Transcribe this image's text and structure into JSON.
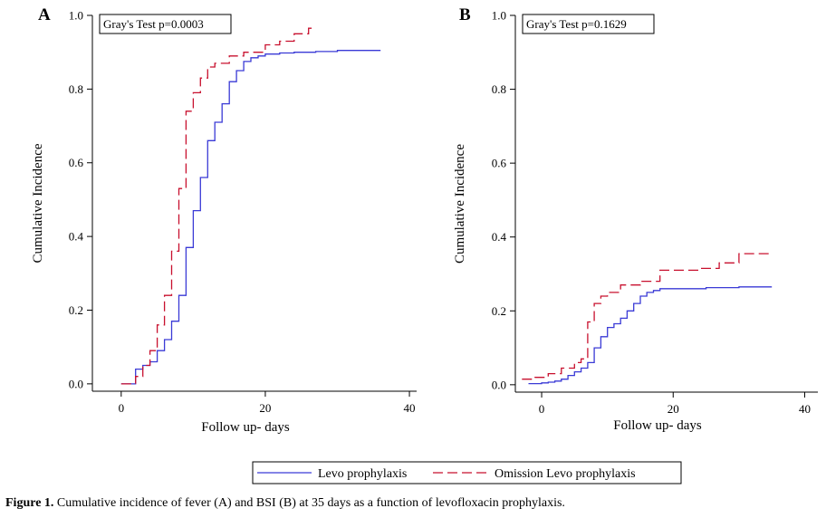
{
  "caption": {
    "label": "Figure 1.",
    "text": "Cumulative incidence of fever (A) and BSI (B) at 35 days as a function of levofloxacin prophylaxis."
  },
  "legend": {
    "items": [
      {
        "name": "Levo prophylaxis",
        "color": "#3a3ad6",
        "dash": "solid"
      },
      {
        "name": "Omission Levo prophylaxis",
        "color": "#c8102e",
        "dash": "dashed"
      }
    ]
  },
  "chart_data": [
    {
      "type": "line",
      "step": true,
      "panel": "A",
      "annotation": "Gray's Test p=0.0003",
      "xlabel": "Follow up- days",
      "ylabel": "Cumulative Incidence",
      "xlim": [
        -4,
        41
      ],
      "ylim": [
        -0.02,
        1.0
      ],
      "xticks": [
        0,
        20,
        40
      ],
      "yticks": [
        0.0,
        0.2,
        0.4,
        0.6,
        0.8,
        1.0
      ],
      "ytick_labels": [
        "0.0",
        "0.2",
        "0.4",
        "0.6",
        "0.8",
        "1.0"
      ],
      "series": [
        {
          "name": "Levo prophylaxis",
          "x": [
            0,
            2,
            3,
            4,
            5,
            6,
            7,
            8,
            9,
            10,
            11,
            12,
            13,
            14,
            15,
            16,
            17,
            18,
            19,
            20,
            22,
            24,
            27,
            30,
            36
          ],
          "y": [
            0.0,
            0.04,
            0.05,
            0.06,
            0.09,
            0.12,
            0.17,
            0.24,
            0.37,
            0.47,
            0.56,
            0.66,
            0.71,
            0.76,
            0.82,
            0.85,
            0.875,
            0.885,
            0.89,
            0.895,
            0.898,
            0.9,
            0.902,
            0.905,
            0.905
          ]
        },
        {
          "name": "Omission Levo prophylaxis",
          "x": [
            0,
            2,
            3,
            4,
            5,
            6,
            7,
            8,
            9,
            10,
            11,
            12,
            13,
            15,
            17,
            20,
            22,
            24,
            26,
            27
          ],
          "y": [
            0.0,
            0.02,
            0.05,
            0.09,
            0.16,
            0.24,
            0.36,
            0.53,
            0.74,
            0.79,
            0.83,
            0.86,
            0.87,
            0.89,
            0.9,
            0.92,
            0.93,
            0.95,
            0.965,
            0.965
          ]
        }
      ]
    },
    {
      "type": "line",
      "step": true,
      "panel": "B",
      "annotation": "Gray's Test p=0.1629",
      "xlabel": "Follow up- days",
      "ylabel": "Cumulative Incidence",
      "xlim": [
        -4,
        42
      ],
      "ylim": [
        -0.02,
        1.0
      ],
      "xticks": [
        0,
        20,
        40
      ],
      "yticks": [
        0.0,
        0.2,
        0.4,
        0.6,
        0.8,
        1.0
      ],
      "ytick_labels": [
        "0.0",
        "0.2",
        "0.4",
        "0.6",
        "0.8",
        "1.0"
      ],
      "series": [
        {
          "name": "Levo prophylaxis",
          "x": [
            -2,
            0,
            1,
            2,
            3,
            4,
            5,
            6,
            7,
            8,
            9,
            10,
            11,
            12,
            13,
            14,
            15,
            16,
            17,
            18,
            20,
            25,
            30,
            35
          ],
          "y": [
            0.003,
            0.005,
            0.007,
            0.01,
            0.015,
            0.025,
            0.035,
            0.045,
            0.06,
            0.1,
            0.13,
            0.155,
            0.165,
            0.18,
            0.2,
            0.22,
            0.24,
            0.25,
            0.255,
            0.26,
            0.26,
            0.263,
            0.265,
            0.265
          ]
        },
        {
          "name": "Omission Levo prophylaxis",
          "x": [
            -3,
            -1,
            1,
            3,
            5,
            6,
            7,
            8,
            9,
            10,
            12,
            15,
            18,
            24,
            27,
            30,
            35
          ],
          "y": [
            0.015,
            0.02,
            0.03,
            0.045,
            0.06,
            0.07,
            0.17,
            0.22,
            0.24,
            0.25,
            0.27,
            0.28,
            0.31,
            0.315,
            0.33,
            0.355,
            0.355
          ]
        }
      ]
    }
  ]
}
